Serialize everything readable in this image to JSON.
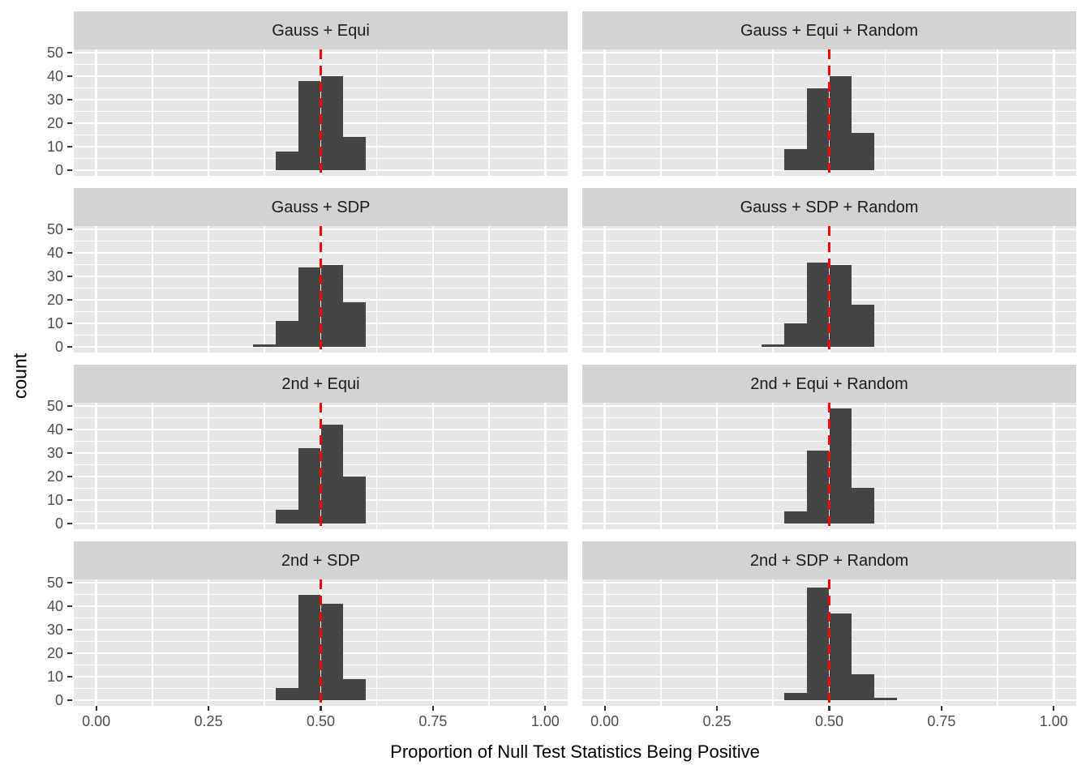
{
  "chart_data": {
    "type": "bar",
    "subtype": "faceted-histogram-grid-4x2",
    "title": "",
    "xlabel": "Proportion of Null Test Statistics Being Positive",
    "ylabel": "count",
    "x_ticks": [
      0,
      0.25,
      0.5,
      0.75,
      1
    ],
    "x_tick_labels": [
      "0.00",
      "0.25",
      "0.50",
      "0.75",
      "1.00"
    ],
    "x_minor_ticks": [
      0.125,
      0.375,
      0.625,
      0.875
    ],
    "y_ticks": [
      0,
      10,
      20,
      30,
      40,
      50
    ],
    "y_tick_labels": [
      "0",
      "10",
      "20",
      "30",
      "40",
      "50"
    ],
    "y_minor_ticks": [
      5,
      15,
      25,
      35,
      45
    ],
    "xlim": [
      -0.05,
      1.05
    ],
    "ylim": [
      -2.45,
      51.45
    ],
    "bin_width": 0.05,
    "reference_line_x": 0.5,
    "reference_line_style": "dashed",
    "grid": true,
    "legend": "none",
    "facets": [
      {
        "title": "Gauss + Equi",
        "bin_start": 0.4,
        "counts": [
          8,
          38,
          40,
          14
        ]
      },
      {
        "title": "Gauss + Equi + Random",
        "bin_start": 0.4,
        "counts": [
          9,
          35,
          40,
          16
        ]
      },
      {
        "title": "Gauss + SDP",
        "bin_start": 0.35,
        "counts": [
          1,
          11,
          34,
          35,
          19
        ]
      },
      {
        "title": "Gauss + SDP + Random",
        "bin_start": 0.35,
        "counts": [
          1,
          10,
          36,
          35,
          18
        ]
      },
      {
        "title": "2nd + Equi",
        "bin_start": 0.4,
        "counts": [
          6,
          32,
          42,
          20
        ]
      },
      {
        "title": "2nd + Equi + Random",
        "bin_start": 0.4,
        "counts": [
          5,
          31,
          49,
          15
        ]
      },
      {
        "title": "2nd + SDP",
        "bin_start": 0.4,
        "counts": [
          5,
          45,
          41,
          9
        ]
      },
      {
        "title": "2nd + SDP + Random",
        "bin_start": 0.4,
        "counts": [
          3,
          48,
          37,
          11,
          1
        ]
      }
    ],
    "colors": {
      "bar_fill": "#454545",
      "reference_line": "#ff0000",
      "panel_background": "#e7e7e7",
      "strip_background": "#d3d3d3",
      "gridline": "#ffffff",
      "tick_label_text": "#4d4d4d",
      "tick_mark": "#333333",
      "axis_title_text": "#000000",
      "strip_text": "#1a1a1a",
      "figure_background": "#ffffff"
    }
  }
}
